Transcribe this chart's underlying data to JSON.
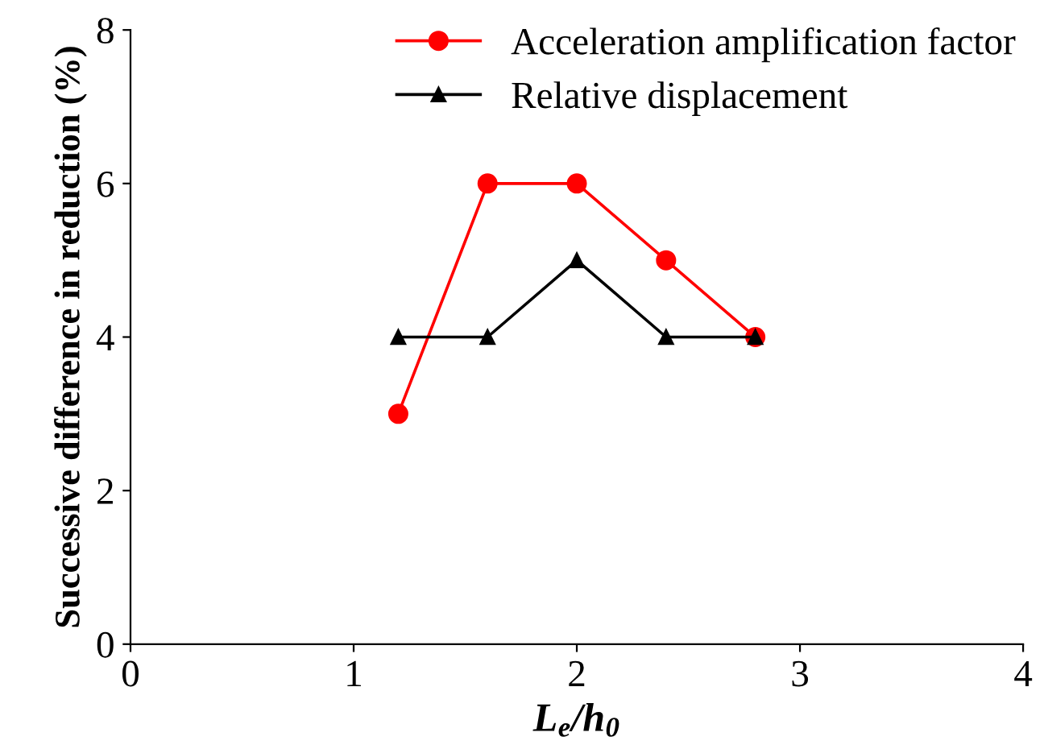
{
  "chart_data": {
    "type": "line",
    "xlabel": "L$_{e}$/h$_{0}$",
    "ylabel": "Successive difference in reduction (%)",
    "x": [
      1.2,
      1.6,
      2.0,
      2.4,
      2.8
    ],
    "series": [
      {
        "name": "Acceleration amplification factor",
        "color": "#ff0000",
        "marker": "circle",
        "values": [
          3,
          6,
          6,
          5,
          4
        ]
      },
      {
        "name": "Relative displacement",
        "color": "#000000",
        "marker": "triangle",
        "values": [
          4,
          4,
          5,
          4,
          4
        ]
      }
    ],
    "xlim": [
      0,
      4
    ],
    "xticks": [
      0,
      1,
      2,
      3,
      4
    ],
    "ylim": [
      0,
      8
    ],
    "yticks": [
      0,
      2,
      4,
      6,
      8
    ],
    "grid": false,
    "legend": "top right",
    "line_style": "solid"
  }
}
